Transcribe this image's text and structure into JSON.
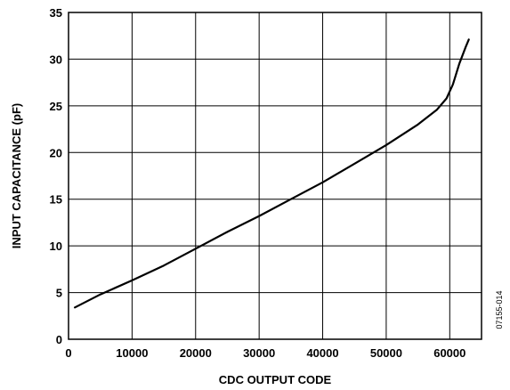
{
  "chart_data": {
    "type": "line",
    "title": "",
    "xlabel": "CDC OUTPUT CODE",
    "ylabel": "INPUT CAPACITANCE (pF)",
    "figure_id": "07155-014",
    "xlim": [
      0,
      65000
    ],
    "ylim": [
      0,
      35
    ],
    "x_ticks": [
      0,
      10000,
      20000,
      30000,
      40000,
      50000,
      60000
    ],
    "y_ticks": [
      0,
      5,
      10,
      15,
      20,
      25,
      30,
      35
    ],
    "grid": true,
    "legend": "none",
    "line_color": "#000000",
    "series": [
      {
        "x": [
          1000,
          5000,
          10000,
          15000,
          20000,
          25000,
          30000,
          35000,
          40000,
          45000,
          50000,
          55000,
          58000,
          59500,
          60500,
          61500,
          62500,
          63000
        ],
        "values": [
          3.4,
          4.8,
          6.3,
          7.9,
          9.7,
          11.5,
          13.2,
          15.0,
          16.8,
          18.8,
          20.8,
          23.0,
          24.6,
          25.8,
          27.3,
          29.5,
          31.3,
          32.1
        ]
      }
    ]
  }
}
